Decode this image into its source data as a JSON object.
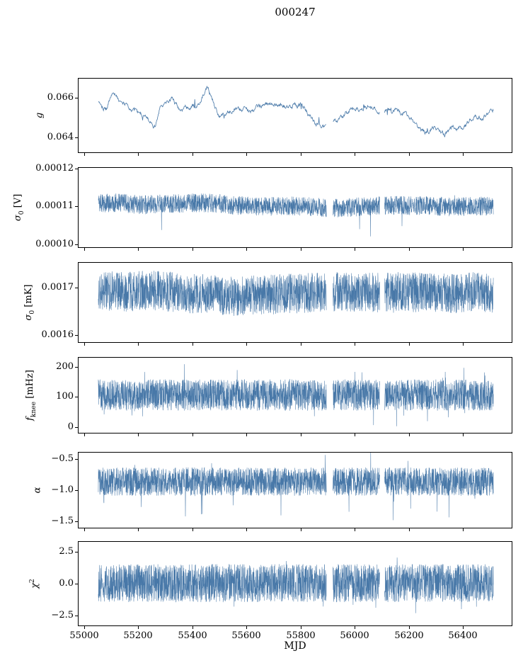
{
  "chart_data": {
    "type": "line",
    "title": "000247",
    "xlabel": "MJD",
    "line_color": "#4878a8",
    "legend": "none",
    "grid": false,
    "x_range": [
      54977,
      56583
    ],
    "x_data_range": [
      55050,
      56510
    ],
    "gaps": [
      [
        55893,
        55917
      ],
      [
        56090,
        56108
      ]
    ],
    "x_ticks": [
      55000,
      55200,
      55400,
      55600,
      55800,
      56000,
      56200,
      56400
    ],
    "x_tick_labels": [
      "55000",
      "55200",
      "55400",
      "55600",
      "55800",
      "56000",
      "56200",
      "56400"
    ],
    "panels": [
      {
        "name": "g",
        "label": {
          "var": "g",
          "sub": "",
          "sup": "",
          "unit": ""
        },
        "ylim": [
          0.0632,
          0.067
        ],
        "yticks": [
          0.064,
          0.066
        ],
        "ytick_labels": [
          "0.064",
          "0.066"
        ],
        "points": 1000,
        "noise": 0.00018,
        "ar": 0.82,
        "spike": {
          "prob": 0.012,
          "up": 0.0004,
          "down": 0.0004
        },
        "seed": 101,
        "anchors": [
          [
            55050,
            0.0659
          ],
          [
            55080,
            0.0655
          ],
          [
            55100,
            0.0663
          ],
          [
            55150,
            0.0657
          ],
          [
            55230,
            0.065
          ],
          [
            55260,
            0.0645
          ],
          [
            55280,
            0.0657
          ],
          [
            55320,
            0.066
          ],
          [
            55350,
            0.0655
          ],
          [
            55420,
            0.0657
          ],
          [
            55450,
            0.0666
          ],
          [
            55470,
            0.066
          ],
          [
            55500,
            0.065
          ],
          [
            55550,
            0.0655
          ],
          [
            55600,
            0.0653
          ],
          [
            55650,
            0.0656
          ],
          [
            55700,
            0.0658
          ],
          [
            55750,
            0.0655
          ],
          [
            55800,
            0.0657
          ],
          [
            55850,
            0.0648
          ],
          [
            55900,
            0.0645
          ],
          [
            55950,
            0.065
          ],
          [
            56000,
            0.0655
          ],
          [
            56050,
            0.0656
          ],
          [
            56100,
            0.0653
          ],
          [
            56150,
            0.0655
          ],
          [
            56200,
            0.065
          ],
          [
            56250,
            0.0643
          ],
          [
            56300,
            0.0644
          ],
          [
            56330,
            0.0641
          ],
          [
            56360,
            0.0646
          ],
          [
            56400,
            0.0645
          ],
          [
            56440,
            0.0652
          ],
          [
            56470,
            0.065
          ],
          [
            56510,
            0.0655
          ]
        ]
      },
      {
        "name": "sigma0-V",
        "label": {
          "var": "σ",
          "sub": "0",
          "sup": "",
          "unit": " [V]"
        },
        "ylim": [
          9.9e-05,
          0.0001203
        ],
        "yticks": [
          0.0001,
          0.00011,
          0.00012
        ],
        "ytick_labels": [
          "0.00010",
          "0.00011",
          "0.00012"
        ],
        "points": 2600,
        "noise": 2.5e-06,
        "ar": 0,
        "spike": {
          "prob": 0.008,
          "up": 1.5e-06,
          "down": 6e-06
        },
        "seed": 102,
        "anchors": [
          [
            55050,
            0.0001108
          ],
          [
            55120,
            0.0001112
          ],
          [
            55200,
            0.0001106
          ],
          [
            55300,
            0.0001108
          ],
          [
            55400,
            0.0001111
          ],
          [
            55480,
            0.000111
          ],
          [
            55560,
            0.0001104
          ],
          [
            55650,
            0.00011
          ],
          [
            55750,
            0.0001103
          ],
          [
            55850,
            0.00011
          ],
          [
            55905,
            0.0001098
          ],
          [
            55950,
            0.0001097
          ],
          [
            56050,
            0.0001102
          ],
          [
            56150,
            0.0001104
          ],
          [
            56250,
            0.0001103
          ],
          [
            56350,
            0.00011
          ],
          [
            56450,
            0.0001102
          ],
          [
            56510,
            0.0001102
          ]
        ]
      },
      {
        "name": "sigma0-mK",
        "label": {
          "var": "σ",
          "sub": "0",
          "sup": "",
          "unit": " [mK]"
        },
        "ylim": [
          0.001583,
          0.001753
        ],
        "yticks": [
          0.0016,
          0.0017
        ],
        "ytick_labels": [
          "0.0016",
          "0.0017"
        ],
        "points": 2600,
        "noise": 4.2e-05,
        "ar": 0,
        "spike": {
          "prob": 0.006,
          "up": 2e-05,
          "down": 7e-05
        },
        "seed": 103,
        "anchors": [
          [
            55050,
            0.001695
          ],
          [
            55150,
            0.001692
          ],
          [
            55250,
            0.001695
          ],
          [
            55350,
            0.00169
          ],
          [
            55450,
            0.001688
          ],
          [
            55550,
            0.001682
          ],
          [
            55650,
            0.001685
          ],
          [
            55750,
            0.001688
          ],
          [
            55850,
            0.00169
          ],
          [
            55950,
            0.001692
          ],
          [
            56050,
            0.00169
          ],
          [
            56150,
            0.001692
          ],
          [
            56250,
            0.00169
          ],
          [
            56350,
            0.001688
          ],
          [
            56450,
            0.001692
          ],
          [
            56510,
            0.00169
          ]
        ]
      },
      {
        "name": "fknee",
        "label": {
          "var": "f",
          "sub": "knee",
          "sup": "",
          "unit": " [mHz]"
        },
        "ylim": [
          -22,
          232
        ],
        "yticks": [
          0,
          100,
          200
        ],
        "ytick_labels": [
          "0",
          "100",
          "200"
        ],
        "points": 2800,
        "noise": 52,
        "ar": 0,
        "spike": {
          "prob": 0.03,
          "up": 75,
          "down": 55
        },
        "seed": 104,
        "anchors": [
          [
            55050,
            108
          ],
          [
            56510,
            108
          ]
        ]
      },
      {
        "name": "alpha",
        "label": {
          "var": "α",
          "sub": "",
          "sup": "",
          "unit": ""
        },
        "ylim": [
          -1.62,
          -0.38
        ],
        "yticks": [
          -0.5,
          -1.0,
          -1.5
        ],
        "ytick_labels": [
          "−0.5",
          "−1.0",
          "−1.5"
        ],
        "points": 2800,
        "noise": 0.23,
        "ar": 0,
        "spike": {
          "prob": 0.02,
          "up": 0.28,
          "down": 0.5
        },
        "seed": 105,
        "anchors": [
          [
            55050,
            -0.85
          ],
          [
            56510,
            -0.85
          ]
        ]
      },
      {
        "name": "chi2",
        "label": {
          "var": "χ",
          "sub": "",
          "sup": "2",
          "unit": ""
        },
        "ylim": [
          -3.35,
          3.35
        ],
        "yticks": [
          2.5,
          0.0,
          -2.5
        ],
        "ytick_labels": [
          "2.5",
          "0.0",
          "−2.5"
        ],
        "points": 2800,
        "noise": 1.5,
        "ar": 0,
        "spike": {
          "prob": 0.012,
          "up": 1.2,
          "down": 1.3
        },
        "seed": 106,
        "anchors": [
          [
            55050,
            0.1
          ],
          [
            56510,
            0.1
          ]
        ]
      }
    ]
  }
}
